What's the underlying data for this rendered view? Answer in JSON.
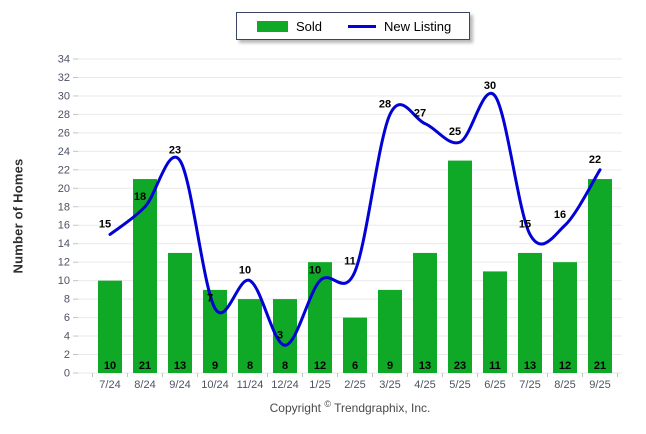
{
  "chart_data": {
    "type": "bar+line combo",
    "categories": [
      "7/24",
      "8/24",
      "9/24",
      "10/24",
      "11/24",
      "12/24",
      "1/25",
      "2/25",
      "3/25",
      "4/25",
      "5/25",
      "6/25",
      "7/25",
      "8/25",
      "9/25"
    ],
    "series": [
      {
        "name": "Sold",
        "type": "bar",
        "color": "#0fa827",
        "values": [
          10,
          21,
          13,
          9,
          8,
          8,
          12,
          6,
          9,
          13,
          23,
          11,
          13,
          12,
          21
        ]
      },
      {
        "name": "New Listing",
        "type": "line",
        "color": "#0202d6",
        "values": [
          15,
          18,
          23,
          7,
          10,
          3,
          10,
          11,
          28,
          27,
          25,
          30,
          15,
          16,
          22
        ]
      }
    ],
    "title": "",
    "xlabel": "",
    "ylabel": "Number of Homes",
    "ylim": [
      0,
      34
    ],
    "ytick_step": 2,
    "grid": true,
    "legend_position": "top-center",
    "value_labels": true
  },
  "footer": {
    "copyright_prefix": "Copyright",
    "copyright_symbol": "©",
    "copyright_suffix": " Trendgraphix, Inc."
  },
  "colors": {
    "grid": "#e9e9e9",
    "tick": "#c4c4c4",
    "axis_text": "#4b5362",
    "value_label": "#000000"
  }
}
